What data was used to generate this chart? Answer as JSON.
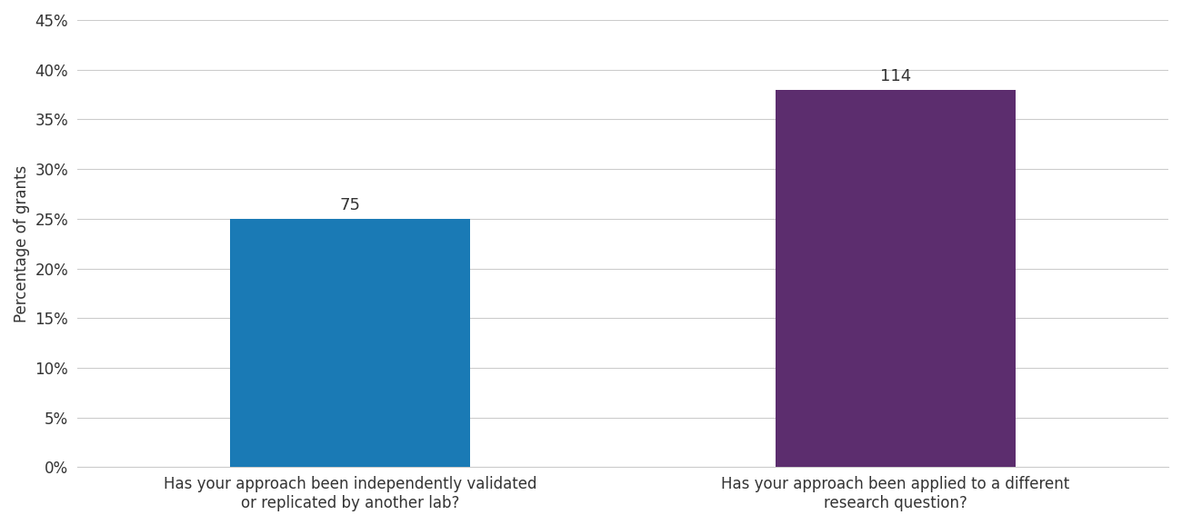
{
  "categories": [
    "Has your approach been independently validated\nor replicated by another lab?",
    "Has your approach been applied to a different\nresearch question?"
  ],
  "values": [
    25,
    38
  ],
  "labels": [
    75,
    114
  ],
  "bar_colors": [
    "#1a7ab5",
    "#5c2d6e"
  ],
  "ylabel": "Percentage of grants",
  "ylim": [
    0,
    45
  ],
  "yticks": [
    0,
    5,
    10,
    15,
    20,
    25,
    30,
    35,
    40,
    45
  ],
  "ytick_labels": [
    "0%",
    "5%",
    "10%",
    "15%",
    "20%",
    "25%",
    "30%",
    "35%",
    "40%",
    "45%"
  ],
  "bar_width": 0.22,
  "label_fontsize": 13,
  "tick_fontsize": 12,
  "ylabel_fontsize": 12,
  "background_color": "#ffffff",
  "grid_color": "#cccccc",
  "x_positions": [
    0.25,
    0.75
  ]
}
